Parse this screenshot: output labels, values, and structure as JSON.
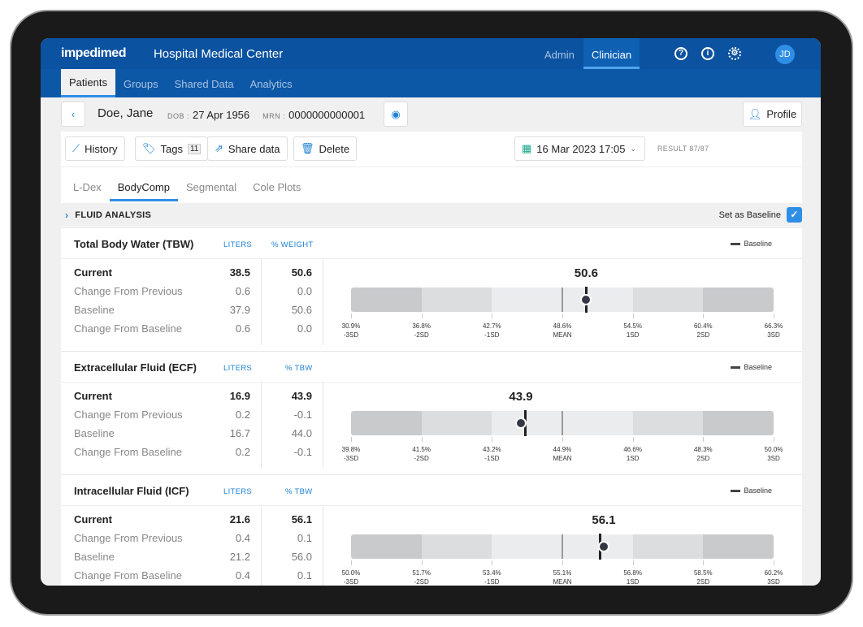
{
  "header": {
    "logo": "impedimed",
    "org": "Hospital Medical Center",
    "roles": [
      "Admin",
      "Clinician"
    ],
    "avatar": "JD"
  },
  "nav": [
    "Patients",
    "Groups",
    "Shared Data",
    "Analytics"
  ],
  "patient": {
    "name": "Doe, Jane",
    "dob_label": "DOB :",
    "dob": "27 Apr 1956",
    "mrn_label": "MRN :",
    "mrn": "0000000000001",
    "profile": "Profile"
  },
  "toolbar": {
    "history": "History",
    "tags": "Tags",
    "tags_count": "11",
    "share": "Share data",
    "delete": "Delete",
    "date": "16 Mar 2023 17:05",
    "result": "RESULT 87/87"
  },
  "tabs": [
    "L-Dex",
    "BodyComp",
    "Segmental",
    "Cole Plots"
  ],
  "fluid": {
    "title": "FLUID ANALYSIS",
    "baseline_label": "Set as Baseline",
    "baseline_checked": true
  },
  "row_labels": [
    "Current",
    "Change From Previous",
    "Baseline",
    "Change From Baseline"
  ],
  "legend": "Baseline",
  "sd_labels": [
    "-3SD",
    "-2SD",
    "-1SD",
    "MEAN",
    "1SD",
    "2SD",
    "3SD"
  ],
  "sections": [
    {
      "title": "Total Body Water (TBW)",
      "unit1": "LITERS",
      "unit2": "% WEIGHT",
      "liters": [
        "38.5",
        "0.6",
        "37.9",
        "0.6"
      ],
      "pct": [
        "50.6",
        "0.0",
        "50.6",
        "0.0"
      ],
      "value_label": "50.6",
      "value": 50.6,
      "baseline": 50.6,
      "ticks": [
        "30.9%",
        "36.8%",
        "42.7%",
        "48.6%",
        "54.5%",
        "60.4%",
        "66.3%"
      ],
      "range": [
        30.9,
        66.3
      ]
    },
    {
      "title": "Extracellular Fluid (ECF)",
      "unit1": "LITERS",
      "unit2": "% TBW",
      "liters": [
        "16.9",
        "0.2",
        "16.7",
        "0.2"
      ],
      "pct": [
        "43.9",
        "-0.1",
        "44.0",
        "-0.1"
      ],
      "value_label": "43.9",
      "value": 43.9,
      "baseline": 44.0,
      "ticks": [
        "39.8%",
        "41.5%",
        "43.2%",
        "44.9%",
        "46.6%",
        "48.3%",
        "50.0%"
      ],
      "range": [
        39.8,
        50.0
      ]
    },
    {
      "title": "Intracellular Fluid (ICF)",
      "unit1": "LITERS",
      "unit2": "% TBW",
      "liters": [
        "21.6",
        "0.4",
        "21.2",
        "0.4"
      ],
      "pct": [
        "56.1",
        "0.1",
        "56.0",
        "0.1"
      ],
      "value_label": "56.1",
      "value": 56.1,
      "baseline": 56.0,
      "ticks": [
        "50.0%",
        "51.7%",
        "53.4%",
        "55.1%",
        "56.8%",
        "58.5%",
        "60.2%"
      ],
      "range": [
        50.0,
        60.2
      ]
    }
  ]
}
